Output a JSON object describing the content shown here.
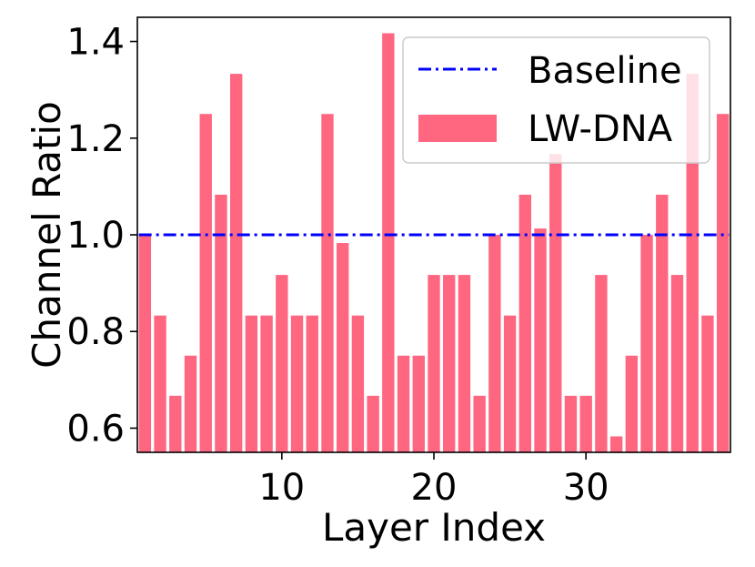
{
  "chart_data": {
    "type": "bar",
    "xlabel": "Layer Index",
    "ylabel": "Channel Ratio",
    "xlim": [
      0.5,
      39.5
    ],
    "ylim": [
      0.55,
      1.45
    ],
    "xticks": [
      10,
      20,
      30
    ],
    "yticks": [
      0.6,
      0.8,
      1.0,
      1.2,
      1.4
    ],
    "ytick_labels": [
      "0.6",
      "0.8",
      "1.0",
      "1.2",
      "1.4"
    ],
    "grid": false,
    "legend_position": "top-right",
    "x": [
      1,
      2,
      3,
      4,
      5,
      6,
      7,
      8,
      9,
      10,
      11,
      12,
      13,
      14,
      15,
      16,
      17,
      18,
      19,
      20,
      21,
      22,
      23,
      24,
      25,
      26,
      27,
      28,
      29,
      30,
      31,
      32,
      33,
      34,
      35,
      36,
      37,
      38,
      39
    ],
    "series": [
      {
        "name": "LW-DNA",
        "color": "#ff6680",
        "values": [
          1.0,
          0.833,
          0.667,
          0.75,
          1.25,
          1.083,
          1.333,
          0.833,
          0.833,
          0.917,
          0.833,
          0.833,
          1.25,
          0.983,
          0.833,
          0.667,
          1.417,
          0.75,
          0.75,
          0.917,
          0.917,
          0.917,
          0.667,
          1.0,
          0.833,
          1.083,
          1.013,
          1.167,
          0.667,
          0.667,
          0.917,
          0.583,
          0.75,
          1.0,
          1.083,
          0.917,
          1.333,
          0.833,
          1.25
        ]
      }
    ],
    "reference_line": {
      "name": "Baseline",
      "value": 1.0,
      "color": "#0000ff",
      "style": "dash-dot"
    }
  }
}
